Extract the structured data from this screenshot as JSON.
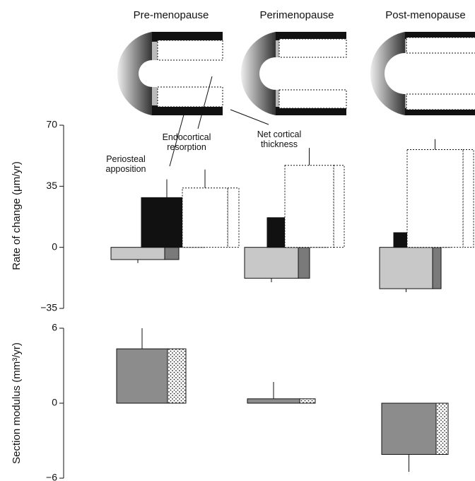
{
  "chart_data": [
    {
      "type": "bar3d",
      "categories": [
        "Pre-menopause",
        "Perimenopause",
        "Post-menopause"
      ],
      "y_label": "Rate of change (μm/yr)",
      "ylim": [
        -35,
        70
      ],
      "yticks": [
        {
          "value": -35,
          "label": "−35"
        },
        0,
        35,
        70
      ],
      "series": [
        {
          "name": "Net cortical thickness",
          "color": "#c8c8c8",
          "style": "solid",
          "values": [
            -7,
            -17.7,
            -23.7
          ],
          "errors": [
            2,
            2.3,
            2
          ]
        },
        {
          "name": "Periosteal apposition",
          "color": "#111111",
          "style": "solid",
          "values": [
            28.5,
            17,
            8.4
          ],
          "errors": [
            10.5,
            7.5,
            5.6
          ]
        },
        {
          "name": "Endocortical resorption",
          "color": "#ffffff",
          "style": "dotted",
          "values": [
            34,
            47,
            56
          ],
          "errors": [
            10.6,
            10,
            6
          ]
        }
      ]
    },
    {
      "type": "bar3d",
      "categories": [
        "Pre-menopause",
        "Perimenopause",
        "Post-menopause"
      ],
      "y_label": "Section modulus (mm³/yr)",
      "ylim": [
        -6,
        6
      ],
      "yticks": [
        {
          "value": -6,
          "label": "−6"
        },
        0,
        6
      ],
      "series": [
        {
          "color": "#8c8c8c",
          "style": "solid",
          "values": [
            4.35,
            0.35,
            -4.1
          ],
          "errors": [
            1.65,
            1.35,
            1.4
          ]
        }
      ]
    }
  ]
}
